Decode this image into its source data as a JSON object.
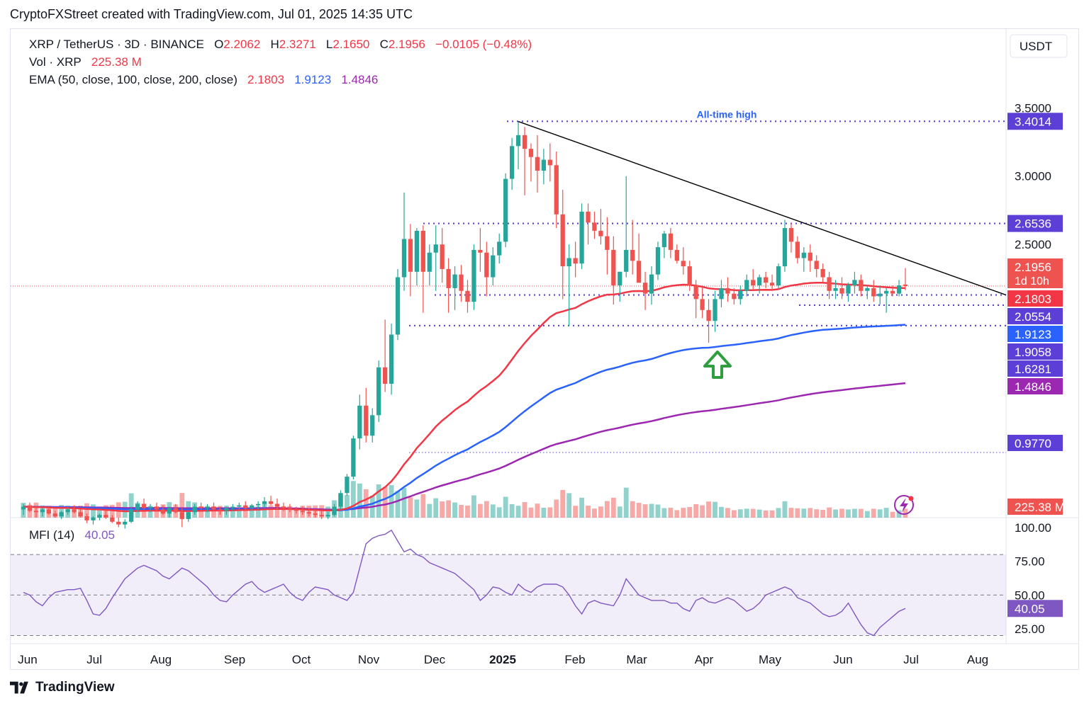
{
  "header": {
    "text": "CryptoFXStreet created with TradingView.com, Jul 01, 2025 14:35 UTC"
  },
  "legend": {
    "symbol": "XRP / TetherUS · 3D · BINANCE",
    "o_lbl": "O",
    "o": "2.2062",
    "h_lbl": "H",
    "h": "2.3271",
    "l_lbl": "L",
    "l": "2.1650",
    "c_lbl": "C",
    "c": "2.1956",
    "change": "−0.0105 (−0.48%)",
    "vol_lbl": "Vol · XRP",
    "vol": "225.38 M",
    "ema_lbl": "EMA (50, close, 100, close, 200, close)",
    "ema50": "2.1803",
    "ema100": "1.9123",
    "ema200": "1.4846",
    "mfi_lbl": "MFI (14)",
    "mfi": "40.05"
  },
  "footer": {
    "brand": "TradingView"
  },
  "colors": {
    "up": "#26a69a",
    "down": "#ef5350",
    "ema50": "#f23645",
    "ema100": "#2962ff",
    "ema200": "#9c27b0",
    "level": "#5b3fd6",
    "mfi": "#7e57c2",
    "ath": "#2962ff"
  },
  "chart_data": [
    {
      "type": "candlestick",
      "title": "XRP / TetherUS · 3D · BINANCE",
      "currency": "USDT",
      "x_labels": [
        "Jun",
        "Jul",
        "Aug",
        "Sep",
        "Oct",
        "Nov",
        "Dec",
        "2025",
        "Feb",
        "Mar",
        "Apr",
        "May",
        "Jun",
        "Jul",
        "Aug"
      ],
      "y_ticks": [
        "3.5000",
        "3.0000",
        "2.5000"
      ],
      "y_range": [
        0.5,
        3.6
      ],
      "annotation": "All-time high",
      "horizontal_levels": [
        {
          "value": 3.4014,
          "label": "3.4014"
        },
        {
          "value": 2.6536,
          "label": "2.6536"
        },
        {
          "value": 2.0554,
          "label": "2.0554"
        },
        {
          "value": 1.9058,
          "label": "1.9058"
        },
        {
          "value": 1.6281,
          "label": "1.6281"
        },
        {
          "value": 0.977,
          "label": "0.9770"
        }
      ],
      "price_tags": [
        {
          "label": "2.1956",
          "sub": "1d 10h",
          "color": "#ef5350"
        },
        {
          "label": "2.1803",
          "color": "#f23645"
        },
        {
          "label": "2.0554",
          "color": "#5b3fd6"
        },
        {
          "label": "1.9123",
          "color": "#2962ff"
        },
        {
          "label": "1.9058",
          "color": "#5b3fd6"
        },
        {
          "label": "1.6281",
          "color": "#5b3fd6"
        },
        {
          "label": "1.4846",
          "color": "#9c27b0"
        },
        {
          "label": "0.9770",
          "color": "#5b3fd6"
        },
        {
          "label": "225.38 M",
          "color": "#ef5350"
        }
      ],
      "candles": [
        [
          0.56,
          0.6,
          0.52,
          0.58
        ],
        [
          0.58,
          0.61,
          0.54,
          0.55
        ],
        [
          0.55,
          0.58,
          0.5,
          0.54
        ],
        [
          0.54,
          0.57,
          0.51,
          0.56
        ],
        [
          0.56,
          0.58,
          0.52,
          0.53
        ],
        [
          0.53,
          0.55,
          0.5,
          0.51
        ],
        [
          0.51,
          0.55,
          0.49,
          0.54
        ],
        [
          0.54,
          0.58,
          0.52,
          0.56
        ],
        [
          0.56,
          0.59,
          0.53,
          0.54
        ],
        [
          0.54,
          0.56,
          0.5,
          0.51
        ],
        [
          0.51,
          0.53,
          0.46,
          0.48
        ],
        [
          0.48,
          0.51,
          0.45,
          0.5
        ],
        [
          0.5,
          0.53,
          0.48,
          0.52
        ],
        [
          0.52,
          0.55,
          0.49,
          0.5
        ],
        [
          0.5,
          0.52,
          0.46,
          0.47
        ],
        [
          0.47,
          0.5,
          0.43,
          0.45
        ],
        [
          0.45,
          0.49,
          0.42,
          0.47
        ],
        [
          0.47,
          0.58,
          0.46,
          0.56
        ],
        [
          0.56,
          0.62,
          0.54,
          0.6
        ],
        [
          0.6,
          0.64,
          0.56,
          0.57
        ],
        [
          0.57,
          0.6,
          0.54,
          0.58
        ],
        [
          0.58,
          0.61,
          0.55,
          0.56
        ],
        [
          0.56,
          0.59,
          0.52,
          0.53
        ],
        [
          0.53,
          0.58,
          0.5,
          0.57
        ],
        [
          0.57,
          0.6,
          0.53,
          0.54
        ],
        [
          0.54,
          0.57,
          0.43,
          0.49
        ],
        [
          0.49,
          0.55,
          0.47,
          0.54
        ],
        [
          0.54,
          0.6,
          0.52,
          0.58
        ],
        [
          0.58,
          0.61,
          0.55,
          0.57
        ],
        [
          0.57,
          0.6,
          0.54,
          0.58
        ],
        [
          0.58,
          0.61,
          0.55,
          0.56
        ],
        [
          0.56,
          0.58,
          0.52,
          0.55
        ],
        [
          0.55,
          0.58,
          0.52,
          0.57
        ],
        [
          0.57,
          0.6,
          0.55,
          0.58
        ],
        [
          0.58,
          0.61,
          0.56,
          0.59
        ],
        [
          0.59,
          0.62,
          0.56,
          0.57
        ],
        [
          0.57,
          0.6,
          0.55,
          0.59
        ],
        [
          0.59,
          0.62,
          0.56,
          0.6
        ],
        [
          0.6,
          0.65,
          0.57,
          0.62
        ],
        [
          0.62,
          0.66,
          0.59,
          0.6
        ],
        [
          0.6,
          0.64,
          0.56,
          0.58
        ],
        [
          0.58,
          0.61,
          0.55,
          0.57
        ],
        [
          0.57,
          0.6,
          0.54,
          0.56
        ],
        [
          0.56,
          0.58,
          0.53,
          0.55
        ],
        [
          0.55,
          0.58,
          0.52,
          0.54
        ],
        [
          0.54,
          0.57,
          0.51,
          0.53
        ],
        [
          0.53,
          0.56,
          0.5,
          0.52
        ],
        [
          0.52,
          0.55,
          0.49,
          0.51
        ],
        [
          0.51,
          0.54,
          0.49,
          0.52
        ],
        [
          0.52,
          0.6,
          0.51,
          0.58
        ],
        [
          0.58,
          0.7,
          0.56,
          0.68
        ],
        [
          0.68,
          0.82,
          0.66,
          0.8
        ],
        [
          0.8,
          1.1,
          0.78,
          1.08
        ],
        [
          1.08,
          1.4,
          1.0,
          1.32
        ],
        [
          1.32,
          1.45,
          1.05,
          1.1
        ],
        [
          1.1,
          1.3,
          1.05,
          1.25
        ],
        [
          1.25,
          1.65,
          1.2,
          1.6
        ],
        [
          1.6,
          1.95,
          1.42,
          1.48
        ],
        [
          1.48,
          1.92,
          1.4,
          1.84
        ],
        [
          1.84,
          2.32,
          1.8,
          2.26
        ],
        [
          2.26,
          2.88,
          2.16,
          2.54
        ],
        [
          2.54,
          2.65,
          2.12,
          2.3
        ],
        [
          2.3,
          2.62,
          2.2,
          2.6
        ],
        [
          2.6,
          2.64,
          2.0,
          2.3
        ],
        [
          2.3,
          2.5,
          2.2,
          2.44
        ],
        [
          2.44,
          2.64,
          2.16,
          2.5
        ],
        [
          2.5,
          2.62,
          2.22,
          2.32
        ],
        [
          2.32,
          2.4,
          2.0,
          2.18
        ],
        [
          2.18,
          2.34,
          2.02,
          2.28
        ],
        [
          2.28,
          2.35,
          2.08,
          2.16
        ],
        [
          2.16,
          2.24,
          2.0,
          2.08
        ],
        [
          2.08,
          2.5,
          2.02,
          2.46
        ],
        [
          2.46,
          2.62,
          2.3,
          2.44
        ],
        [
          2.44,
          2.52,
          2.12,
          2.26
        ],
        [
          2.26,
          2.48,
          2.2,
          2.42
        ],
        [
          2.42,
          2.58,
          2.36,
          2.52
        ],
        [
          2.52,
          3.02,
          2.48,
          2.98
        ],
        [
          2.98,
          3.28,
          2.9,
          3.22
        ],
        [
          3.22,
          3.4,
          3.05,
          3.3
        ],
        [
          3.3,
          3.36,
          2.86,
          3.2
        ],
        [
          3.2,
          3.24,
          2.96,
          3.14
        ],
        [
          3.14,
          3.3,
          2.88,
          3.04
        ],
        [
          3.04,
          3.2,
          2.94,
          3.12
        ],
        [
          3.12,
          3.24,
          2.96,
          3.08
        ],
        [
          3.08,
          3.18,
          2.62,
          2.72
        ],
        [
          2.72,
          2.9,
          2.1,
          2.34
        ],
        [
          2.34,
          2.5,
          1.9,
          2.4
        ],
        [
          2.4,
          2.52,
          2.26,
          2.36
        ],
        [
          2.36,
          2.8,
          2.32,
          2.74
        ],
        [
          2.74,
          2.8,
          2.5,
          2.66
        ],
        [
          2.66,
          2.74,
          2.54,
          2.6
        ],
        [
          2.6,
          2.76,
          2.5,
          2.56
        ],
        [
          2.56,
          2.7,
          2.28,
          2.46
        ],
        [
          2.46,
          2.56,
          2.06,
          2.2
        ],
        [
          2.2,
          2.3,
          2.08,
          2.3
        ],
        [
          2.3,
          3.0,
          2.26,
          2.46
        ],
        [
          2.46,
          2.68,
          2.28,
          2.38
        ],
        [
          2.38,
          2.58,
          2.24,
          2.22
        ],
        [
          2.22,
          2.3,
          2.02,
          2.14
        ],
        [
          2.14,
          2.34,
          2.06,
          2.28
        ],
        [
          2.28,
          2.52,
          2.24,
          2.48
        ],
        [
          2.48,
          2.6,
          2.4,
          2.58
        ],
        [
          2.58,
          2.62,
          2.4,
          2.46
        ],
        [
          2.46,
          2.5,
          2.36,
          2.38
        ],
        [
          2.38,
          2.48,
          2.28,
          2.34
        ],
        [
          2.34,
          2.38,
          2.16,
          2.2
        ],
        [
          2.2,
          2.24,
          1.96,
          2.1
        ],
        [
          2.1,
          2.2,
          1.96,
          2.02
        ],
        [
          2.02,
          2.1,
          1.78,
          1.94
        ],
        [
          1.94,
          2.16,
          1.86,
          2.1
        ],
        [
          2.1,
          2.24,
          2.04,
          2.18
        ],
        [
          2.18,
          2.26,
          2.08,
          2.14
        ],
        [
          2.14,
          2.18,
          2.06,
          2.1
        ],
        [
          2.1,
          2.2,
          2.06,
          2.16
        ],
        [
          2.16,
          2.28,
          2.12,
          2.24
        ],
        [
          2.24,
          2.32,
          2.16,
          2.2
        ],
        [
          2.2,
          2.28,
          2.14,
          2.26
        ],
        [
          2.26,
          2.3,
          2.18,
          2.22
        ],
        [
          2.22,
          2.28,
          2.16,
          2.2
        ],
        [
          2.2,
          2.36,
          2.18,
          2.34
        ],
        [
          2.34,
          2.68,
          2.3,
          2.62
        ],
        [
          2.62,
          2.66,
          2.44,
          2.52
        ],
        [
          2.52,
          2.56,
          2.36,
          2.4
        ],
        [
          2.4,
          2.48,
          2.3,
          2.44
        ],
        [
          2.44,
          2.5,
          2.3,
          2.38
        ],
        [
          2.38,
          2.42,
          2.26,
          2.32
        ],
        [
          2.32,
          2.36,
          2.22,
          2.26
        ],
        [
          2.26,
          2.3,
          2.1,
          2.16
        ],
        [
          2.16,
          2.24,
          2.1,
          2.18
        ],
        [
          2.18,
          2.26,
          2.1,
          2.14
        ],
        [
          2.14,
          2.22,
          2.08,
          2.2
        ],
        [
          2.2,
          2.3,
          2.14,
          2.24
        ],
        [
          2.24,
          2.28,
          2.12,
          2.16
        ],
        [
          2.16,
          2.2,
          2.1,
          2.18
        ],
        [
          2.18,
          2.24,
          2.08,
          2.12
        ],
        [
          2.12,
          2.2,
          2.06,
          2.14
        ],
        [
          2.14,
          2.18,
          2.0,
          2.16
        ],
        [
          2.16,
          2.2,
          2.12,
          2.14
        ],
        [
          2.14,
          2.24,
          2.12,
          2.2
        ],
        [
          2.2062,
          2.3271,
          2.165,
          2.1956
        ]
      ],
      "volume_last": "225.38 M"
    },
    {
      "type": "line",
      "title": "MFI (14)",
      "series": [
        {
          "name": "MFI (14)",
          "values": [
            52,
            50,
            45,
            42,
            48,
            52,
            53,
            54,
            54,
            55,
            46,
            36,
            35,
            40,
            48,
            55,
            62,
            66,
            70,
            72,
            70,
            68,
            64,
            62,
            66,
            70,
            68,
            64,
            60,
            56,
            50,
            46,
            45,
            50,
            54,
            58,
            60,
            55,
            52,
            54,
            56,
            58,
            52,
            48,
            46,
            52,
            56,
            55,
            54,
            50,
            48,
            46,
            52,
            70,
            88,
            92,
            94,
            95,
            98,
            90,
            82,
            84,
            80,
            78,
            74,
            72,
            70,
            68,
            66,
            62,
            58,
            54,
            46,
            50,
            56,
            55,
            52,
            50,
            58,
            54,
            52,
            56,
            58,
            58,
            58,
            56,
            50,
            42,
            36,
            44,
            46,
            44,
            43,
            42,
            50,
            62,
            56,
            50,
            48,
            46,
            46,
            46,
            44,
            44,
            40,
            38,
            46,
            48,
            45,
            44,
            46,
            48,
            46,
            42,
            38,
            40,
            44,
            50,
            52,
            54,
            56,
            54,
            48,
            46,
            44,
            40,
            36,
            34,
            35,
            38,
            44,
            36,
            28,
            22,
            20,
            26,
            30,
            34,
            38,
            40.05
          ]
        }
      ],
      "y_ticks": [
        "100.00",
        "75.00",
        "50.00",
        "25.00"
      ],
      "y_range": [
        15,
        100
      ],
      "band": [
        20,
        80
      ],
      "last_tag": "40.05"
    }
  ]
}
